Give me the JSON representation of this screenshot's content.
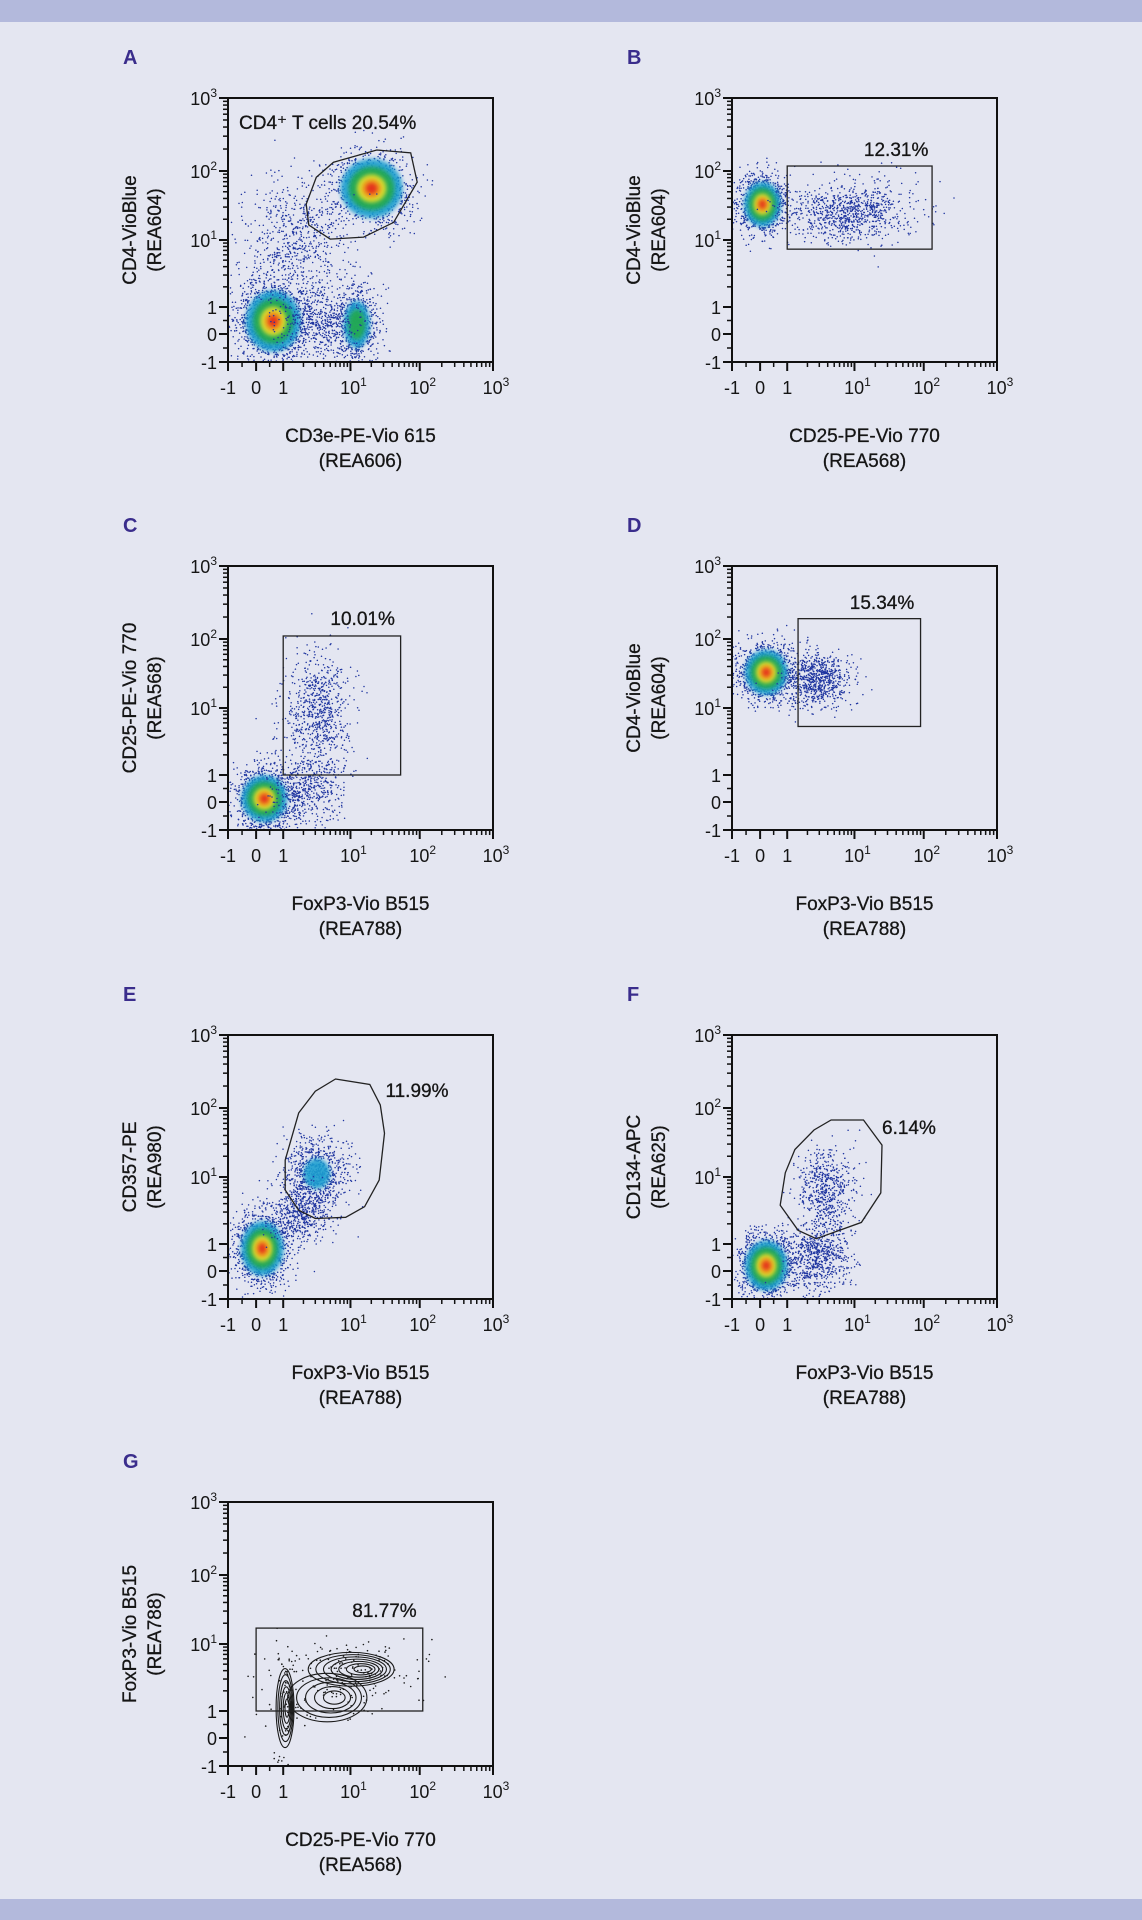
{
  "colors": {
    "background": "#e4e6f1",
    "band": "#b3b9dc",
    "panel_letter": "#3a2d8c",
    "events": "#1f35a0",
    "density": [
      "#1e9fd0",
      "#22a94c",
      "#e6e22e",
      "#f39a1f",
      "#e2281a"
    ],
    "contour": "#1a1a1a",
    "gate": "#222222"
  },
  "axis_ticks": [
    {
      "value": -1,
      "base": "-1",
      "sup": ""
    },
    {
      "value": 0,
      "base": "0",
      "sup": ""
    },
    {
      "value": 1,
      "base": "1",
      "sup": ""
    },
    {
      "value": 10,
      "base": "10",
      "sup": "1"
    },
    {
      "value": 100,
      "base": "10",
      "sup": "2"
    },
    {
      "value": 1000,
      "base": "10",
      "sup": "3"
    }
  ],
  "chart_data": [
    {
      "panel": "A",
      "type": "scatter",
      "style": "density",
      "xlabel": [
        "CD3e-PE-Vio 615",
        "(REA606)"
      ],
      "ylabel": [
        "CD4-VioBlue",
        "(REA604)"
      ],
      "xlim": [
        -1,
        1000
      ],
      "ylim": [
        -1,
        1000
      ],
      "scale": "biexponential",
      "gate": {
        "shape": "polygon",
        "label": "CD4⁺ T cells 20.54%",
        "percent": 20.54,
        "points": [
          [
            5.6,
            132
          ],
          [
            24,
            194
          ],
          [
            74,
            177
          ],
          [
            92,
            69
          ],
          [
            42,
            18
          ],
          [
            15.5,
            11
          ],
          [
            5.0,
            10.3
          ],
          [
            2.4,
            16.5
          ],
          [
            2.2,
            33
          ],
          [
            3.1,
            81
          ]
        ]
      },
      "populations": [
        {
          "x_range": [
            -0.7,
            2.5
          ],
          "y_range": [
            -1,
            2.5
          ],
          "count": 1500,
          "heat": 5
        },
        {
          "x_range": [
            6,
            25
          ],
          "y_range": [
            -1,
            2
          ],
          "count": 650,
          "heat": 2
        },
        {
          "x_range": [
            5,
            80
          ],
          "y_range": [
            15,
            200
          ],
          "count": 950,
          "heat": 5
        },
        {
          "x_range": [
            -0.5,
            12
          ],
          "y_range": [
            1,
            80
          ],
          "count": 700,
          "heat": 0
        },
        {
          "x_range": [
            1,
            12
          ],
          "y_range": [
            -1,
            2
          ],
          "count": 500,
          "heat": 0
        }
      ]
    },
    {
      "panel": "B",
      "type": "scatter",
      "style": "density",
      "xlabel": [
        "CD25-PE-Vio 770",
        "(REA568)"
      ],
      "ylabel": [
        "CD4-VioBlue",
        "(REA604)"
      ],
      "xlim": [
        -1,
        1000
      ],
      "ylim": [
        -1,
        1000
      ],
      "scale": "biexponential",
      "gate": {
        "shape": "rectangle",
        "label": "12.31%",
        "percent": 12.31,
        "points": [
          [
            1,
            7.3
          ],
          [
            130,
            117
          ]
        ]
      },
      "populations": [
        {
          "x_range": [
            -0.8,
            1
          ],
          "y_range": [
            12,
            90
          ],
          "count": 1000,
          "heat": 5
        },
        {
          "x_range": [
            1,
            60
          ],
          "y_range": [
            10,
            60
          ],
          "count": 750,
          "heat": 0
        },
        {
          "x_range": [
            1,
            150
          ],
          "y_range": [
            8,
            110
          ],
          "count": 150,
          "heat": 0
        }
      ]
    },
    {
      "panel": "C",
      "type": "scatter",
      "style": "density",
      "xlabel": [
        "FoxP3-Vio B515",
        "(REA788)"
      ],
      "ylabel": [
        "CD25-PE-Vio 770",
        "(REA568)"
      ],
      "xlim": [
        -1,
        1000
      ],
      "ylim": [
        -1,
        1000
      ],
      "scale": "biexponential",
      "gate": {
        "shape": "rectangle",
        "label": "10.01%",
        "percent": 10.01,
        "points": [
          [
            1,
            1
          ],
          [
            53,
            110
          ]
        ]
      },
      "populations": [
        {
          "x_range": [
            -0.8,
            1.5
          ],
          "y_range": [
            -1,
            1.3
          ],
          "count": 1200,
          "heat": 5
        },
        {
          "x_range": [
            1,
            10
          ],
          "y_range": [
            1,
            60
          ],
          "count": 750,
          "heat": 0
        },
        {
          "x_range": [
            0.5,
            8
          ],
          "y_range": [
            -0.8,
            2
          ],
          "count": 450,
          "heat": 0
        }
      ]
    },
    {
      "panel": "D",
      "type": "scatter",
      "style": "density",
      "xlabel": [
        "FoxP3-Vio B515",
        "(REA788)"
      ],
      "ylabel": [
        "CD4-VioBlue",
        "(REA604)"
      ],
      "xlim": [
        -1,
        1000
      ],
      "ylim": [
        -1,
        1000
      ],
      "scale": "biexponential",
      "gate": {
        "shape": "rectangle",
        "label": "15.34%",
        "percent": 15.34,
        "points": [
          [
            1.45,
            5.3
          ],
          [
            90,
            190
          ]
        ]
      },
      "populations": [
        {
          "x_range": [
            -0.8,
            1.3
          ],
          "y_range": [
            12,
            90
          ],
          "count": 1100,
          "heat": 5
        },
        {
          "x_range": [
            1,
            8
          ],
          "y_range": [
            11,
            60
          ],
          "count": 750,
          "heat": 0
        }
      ]
    },
    {
      "panel": "E",
      "type": "scatter",
      "style": "density",
      "xlabel": [
        "FoxP3-Vio B515",
        "(REA788)"
      ],
      "ylabel": [
        "CD357-PE",
        "(REA980)"
      ],
      "xlim": [
        -1,
        1000
      ],
      "ylim": [
        -1,
        1000
      ],
      "scale": "biexponential",
      "gate": {
        "shape": "polygon",
        "label": "11.99%",
        "percent": 11.99,
        "points": [
          [
            6,
            250
          ],
          [
            19,
            210
          ],
          [
            27,
            110
          ],
          [
            31,
            43
          ],
          [
            26,
            9
          ],
          [
            16,
            3.6
          ],
          [
            8.5,
            2.5
          ],
          [
            3.0,
            2.4
          ],
          [
            1.7,
            3.2
          ],
          [
            1.07,
            6.4
          ],
          [
            1.07,
            17.6
          ],
          [
            1.7,
            85
          ],
          [
            3.0,
            170
          ]
        ]
      },
      "populations": [
        {
          "x_range": [
            -0.8,
            1.3
          ],
          "y_range": [
            -0.5,
            3
          ],
          "count": 1200,
          "heat": 5
        },
        {
          "x_range": [
            1,
            10
          ],
          "y_range": [
            3,
            40
          ],
          "count": 750,
          "heat": 1
        },
        {
          "x_range": [
            0.5,
            5
          ],
          "y_range": [
            1,
            8
          ],
          "count": 500,
          "heat": 0
        }
      ]
    },
    {
      "panel": "F",
      "type": "scatter",
      "style": "density",
      "xlabel": [
        "FoxP3-Vio B515",
        "(REA788)"
      ],
      "ylabel": [
        "CD134-APC",
        "(REA625)"
      ],
      "xlim": [
        -1,
        1000
      ],
      "ylim": [
        -1,
        1000
      ],
      "scale": "biexponential",
      "gate": {
        "shape": "polygon",
        "label": "6.14%",
        "percent": 6.14,
        "points": [
          [
            4.5,
            67
          ],
          [
            13.5,
            67
          ],
          [
            25,
            29
          ],
          [
            24,
            5.8
          ],
          [
            12.6,
            2.1
          ],
          [
            2.7,
            1.2
          ],
          [
            1.45,
            1.6
          ],
          [
            0.74,
            3.8
          ],
          [
            0.93,
            11.5
          ],
          [
            1.3,
            25
          ],
          [
            2.5,
            48
          ]
        ]
      },
      "populations": [
        {
          "x_range": [
            -0.8,
            1.3
          ],
          "y_range": [
            -1,
            1.5
          ],
          "count": 1200,
          "heat": 5
        },
        {
          "x_range": [
            1.5,
            10
          ],
          "y_range": [
            1.5,
            25
          ],
          "count": 600,
          "heat": 0
        },
        {
          "x_range": [
            1,
            8
          ],
          "y_range": [
            -0.8,
            2
          ],
          "count": 650,
          "heat": 0
        }
      ]
    },
    {
      "panel": "G",
      "type": "scatter",
      "style": "contour",
      "xlabel": [
        "CD25-PE-Vio 770",
        "(REA568)"
      ],
      "ylabel": [
        "FoxP3-Vio B515",
        "(REA788)"
      ],
      "xlim": [
        -1,
        1000
      ],
      "ylim": [
        -1,
        1000
      ],
      "scale": "biexponential",
      "gate": {
        "shape": "rectangle",
        "label": "81.77%",
        "percent": 81.77,
        "points": [
          [
            0,
            1
          ],
          [
            110,
            17
          ]
        ]
      },
      "populations": [
        {
          "x_range": [
            0.7,
            1.5
          ],
          "y_range": [
            -0.5,
            5
          ],
          "count": 60,
          "heat": 4
        },
        {
          "x_range": [
            2,
            50
          ],
          "y_range": [
            2.2,
            8
          ],
          "count": 140,
          "heat": 5
        },
        {
          "x_range": [
            1,
            20
          ],
          "y_range": [
            0.5,
            4
          ],
          "count": 60,
          "heat": 3
        }
      ]
    }
  ]
}
